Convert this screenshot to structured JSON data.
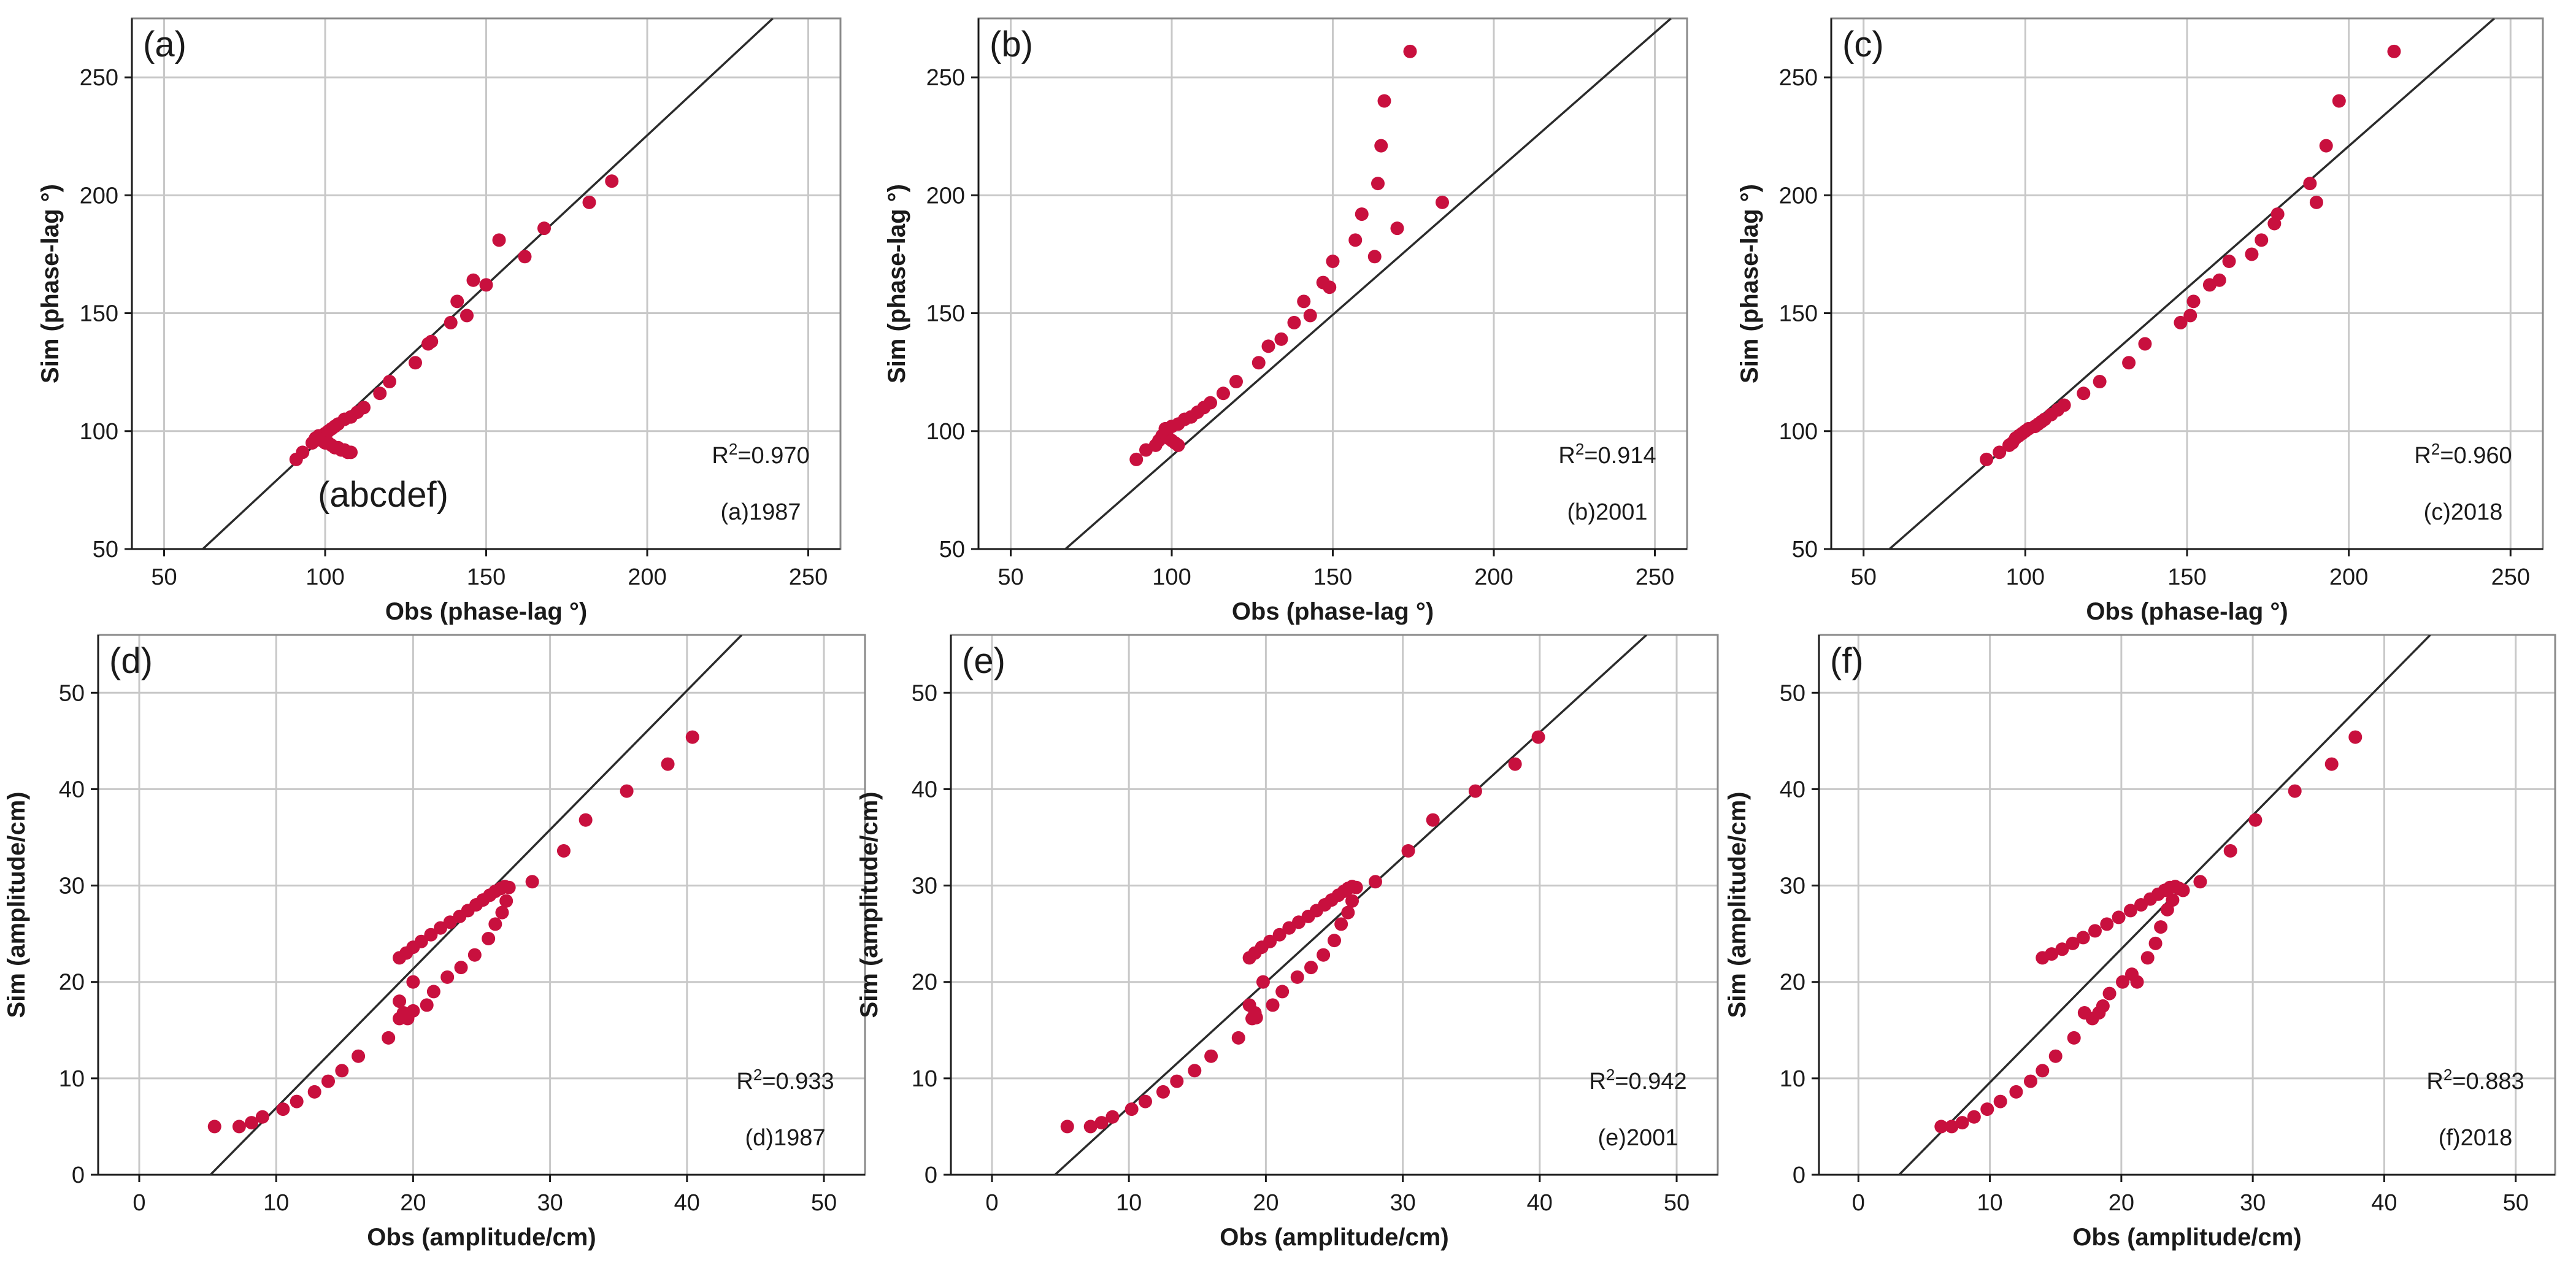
{
  "colors": {
    "point": "#c8103e",
    "grid": "#c8c8c8",
    "frame": "#8a8a8a",
    "line": "#2b2b2b",
    "text": "#1a1a1a"
  },
  "chart_data": [
    {
      "id": "a",
      "type": "scatter",
      "panel_label": "(a)",
      "xlabel": "Obs (phase-lag °)",
      "ylabel": "Sim (phase-lag °)",
      "xlim": [
        40,
        260
      ],
      "ylim": [
        50,
        275
      ],
      "xticks": [
        50,
        100,
        150,
        200,
        250
      ],
      "yticks": [
        50,
        100,
        150,
        200,
        250
      ],
      "reference_line": {
        "x1": 62,
        "y1": 50,
        "x2": 239,
        "y2": 275
      },
      "r2_prefix": "R",
      "r2_power": "2",
      "r2_value": "=0.970",
      "year_label": "(a)1987",
      "extra_label": "(abcdef)",
      "points": [
        [
          91,
          88
        ],
        [
          93,
          91
        ],
        [
          96,
          95
        ],
        [
          97,
          97
        ],
        [
          98,
          98
        ],
        [
          99,
          98
        ],
        [
          100,
          99
        ],
        [
          101,
          100
        ],
        [
          102,
          101
        ],
        [
          103,
          102
        ],
        [
          98,
          97
        ],
        [
          99,
          96
        ],
        [
          100,
          95
        ],
        [
          101,
          95
        ],
        [
          102,
          94
        ],
        [
          103,
          93
        ],
        [
          104,
          93
        ],
        [
          105,
          92
        ],
        [
          106,
          92
        ],
        [
          107,
          91
        ],
        [
          108,
          91
        ],
        [
          104,
          103
        ],
        [
          106,
          105
        ],
        [
          108,
          106
        ],
        [
          110,
          108
        ],
        [
          112,
          110
        ],
        [
          117,
          116
        ],
        [
          120,
          121
        ],
        [
          128,
          129
        ],
        [
          132,
          137
        ],
        [
          133,
          138
        ],
        [
          139,
          146
        ],
        [
          141,
          155
        ],
        [
          144,
          149
        ],
        [
          146,
          164
        ],
        [
          150,
          162
        ],
        [
          154,
          181
        ],
        [
          162,
          174
        ],
        [
          168,
          186
        ],
        [
          182,
          197
        ],
        [
          189,
          206
        ]
      ]
    },
    {
      "id": "b",
      "type": "scatter",
      "panel_label": "(b)",
      "xlabel": "Obs (phase-lag °)",
      "ylabel": "Sim (phase-lag °)",
      "xlim": [
        40,
        260
      ],
      "ylim": [
        50,
        275
      ],
      "xticks": [
        50,
        100,
        150,
        200,
        250
      ],
      "yticks": [
        50,
        100,
        150,
        200,
        250
      ],
      "reference_line": {
        "x1": 67,
        "y1": 50,
        "x2": 255,
        "y2": 275
      },
      "r2_prefix": "R",
      "r2_power": "2",
      "r2_value": "=0.914",
      "year_label": "(b)2001",
      "points": [
        [
          89,
          88
        ],
        [
          92,
          92
        ],
        [
          95,
          94
        ],
        [
          96,
          96
        ],
        [
          97,
          98
        ],
        [
          98,
          99
        ],
        [
          99,
          97
        ],
        [
          100,
          96
        ],
        [
          101,
          95
        ],
        [
          102,
          94
        ],
        [
          98,
          101
        ],
        [
          100,
          102
        ],
        [
          102,
          103
        ],
        [
          104,
          105
        ],
        [
          106,
          106
        ],
        [
          108,
          108
        ],
        [
          110,
          110
        ],
        [
          112,
          112
        ],
        [
          116,
          116
        ],
        [
          120,
          121
        ],
        [
          127,
          129
        ],
        [
          130,
          136
        ],
        [
          134,
          139
        ],
        [
          138,
          146
        ],
        [
          141,
          155
        ],
        [
          143,
          149
        ],
        [
          147,
          163
        ],
        [
          149,
          161
        ],
        [
          150,
          172
        ],
        [
          157,
          181
        ],
        [
          159,
          192
        ],
        [
          163,
          174
        ],
        [
          164,
          205
        ],
        [
          165,
          221
        ],
        [
          166,
          240
        ],
        [
          170,
          186
        ],
        [
          174,
          261
        ],
        [
          184,
          197
        ]
      ]
    },
    {
      "id": "c",
      "type": "scatter",
      "panel_label": "(c)",
      "xlabel": "Obs (phase-lag °)",
      "ylabel": "Sim (phase-lag °)",
      "xlim": [
        40,
        260
      ],
      "ylim": [
        50,
        275
      ],
      "xticks": [
        50,
        100,
        150,
        200,
        250
      ],
      "yticks": [
        50,
        100,
        150,
        200,
        250
      ],
      "reference_line": {
        "x1": 58,
        "y1": 50,
        "x2": 245,
        "y2": 275
      },
      "r2_prefix": "R",
      "r2_power": "2",
      "r2_value": "=0.960",
      "year_label": "(c)2018",
      "points": [
        [
          88,
          88
        ],
        [
          92,
          91
        ],
        [
          95,
          94
        ],
        [
          96,
          95
        ],
        [
          97,
          97
        ],
        [
          98,
          98
        ],
        [
          99,
          99
        ],
        [
          100,
          100
        ],
        [
          101,
          101
        ],
        [
          103,
          102
        ],
        [
          104,
          103
        ],
        [
          105,
          104
        ],
        [
          106,
          105
        ],
        [
          108,
          107
        ],
        [
          110,
          109
        ],
        [
          112,
          111
        ],
        [
          118,
          116
        ],
        [
          123,
          121
        ],
        [
          132,
          129
        ],
        [
          137,
          137
        ],
        [
          148,
          146
        ],
        [
          151,
          149
        ],
        [
          152,
          155
        ],
        [
          157,
          162
        ],
        [
          160,
          164
        ],
        [
          163,
          172
        ],
        [
          170,
          175
        ],
        [
          173,
          181
        ],
        [
          177,
          188
        ],
        [
          178,
          192
        ],
        [
          188,
          205
        ],
        [
          190,
          197
        ],
        [
          193,
          221
        ],
        [
          197,
          240
        ],
        [
          214,
          261
        ]
      ]
    },
    {
      "id": "d",
      "type": "scatter",
      "panel_label": "(d)",
      "xlabel": "Obs (amplitude/cm)",
      "ylabel": "Sim (amplitude/cm)",
      "xlim": [
        -3,
        53
      ],
      "ylim": [
        0,
        56
      ],
      "xticks": [
        0,
        10,
        20,
        30,
        40,
        50
      ],
      "yticks": [
        0,
        10,
        20,
        30,
        40,
        50
      ],
      "reference_line": {
        "x1": 5.2,
        "y1": 0,
        "x2": 44,
        "y2": 56
      },
      "r2_prefix": "R",
      "r2_power": "2",
      "r2_value": "=0.933",
      "year_label": "(d)1987",
      "points": [
        [
          5.5,
          5.0
        ],
        [
          7.3,
          5.0
        ],
        [
          8.2,
          5.4
        ],
        [
          9.0,
          6.0
        ],
        [
          10.5,
          6.8
        ],
        [
          11.5,
          7.6
        ],
        [
          12.8,
          8.6
        ],
        [
          13.8,
          9.7
        ],
        [
          14.8,
          10.8
        ],
        [
          16.0,
          12.3
        ],
        [
          18.2,
          14.2
        ],
        [
          19.0,
          16.2
        ],
        [
          19.3,
          16.8
        ],
        [
          19.6,
          16.2
        ],
        [
          20.0,
          17.0
        ],
        [
          19.0,
          18.0
        ],
        [
          20.0,
          20.0
        ],
        [
          21.0,
          17.6
        ],
        [
          21.5,
          19.0
        ],
        [
          22.5,
          20.5
        ],
        [
          23.5,
          21.5
        ],
        [
          24.5,
          22.8
        ],
        [
          25.5,
          24.5
        ],
        [
          26.0,
          26.0
        ],
        [
          26.5,
          27.2
        ],
        [
          26.8,
          28.4
        ],
        [
          19.0,
          22.5
        ],
        [
          19.5,
          23.0
        ],
        [
          20.0,
          23.6
        ],
        [
          20.6,
          24.2
        ],
        [
          21.3,
          24.9
        ],
        [
          22.0,
          25.6
        ],
        [
          22.7,
          26.2
        ],
        [
          23.4,
          26.8
        ],
        [
          24.0,
          27.4
        ],
        [
          24.6,
          28.0
        ],
        [
          25.1,
          28.5
        ],
        [
          25.6,
          29.0
        ],
        [
          26.0,
          29.4
        ],
        [
          26.4,
          29.7
        ],
        [
          26.7,
          29.9
        ],
        [
          27.0,
          29.8
        ],
        [
          28.7,
          30.4
        ],
        [
          31.0,
          33.6
        ],
        [
          32.6,
          36.8
        ],
        [
          35.6,
          39.8
        ],
        [
          38.6,
          42.6
        ],
        [
          40.4,
          45.4
        ]
      ]
    },
    {
      "id": "e",
      "type": "scatter",
      "panel_label": "(e)",
      "xlabel": "Obs (amplitude/cm)",
      "ylabel": "Sim (amplitude/cm)",
      "xlim": [
        -3,
        53
      ],
      "ylim": [
        0,
        56
      ],
      "xticks": [
        0,
        10,
        20,
        30,
        40,
        50
      ],
      "yticks": [
        0,
        10,
        20,
        30,
        40,
        50
      ],
      "reference_line": {
        "x1": 4.6,
        "y1": 0,
        "x2": 47.8,
        "y2": 56
      },
      "r2_prefix": "R",
      "r2_power": "2",
      "r2_value": "=0.942",
      "year_label": "(e)2001",
      "points": [
        [
          5.5,
          5.0
        ],
        [
          7.2,
          5.0
        ],
        [
          8.0,
          5.4
        ],
        [
          8.8,
          6.0
        ],
        [
          10.2,
          6.8
        ],
        [
          11.2,
          7.6
        ],
        [
          12.5,
          8.6
        ],
        [
          13.5,
          9.7
        ],
        [
          14.8,
          10.8
        ],
        [
          16.0,
          12.3
        ],
        [
          18.0,
          14.2
        ],
        [
          19.0,
          16.2
        ],
        [
          19.2,
          16.8
        ],
        [
          18.8,
          17.6
        ],
        [
          19.3,
          16.3
        ],
        [
          19.8,
          20.0
        ],
        [
          20.5,
          17.6
        ],
        [
          21.2,
          19.0
        ],
        [
          22.3,
          20.5
        ],
        [
          23.3,
          21.5
        ],
        [
          24.2,
          22.8
        ],
        [
          25.0,
          24.3
        ],
        [
          25.5,
          26.0
        ],
        [
          26.0,
          27.2
        ],
        [
          26.3,
          28.4
        ],
        [
          18.8,
          22.5
        ],
        [
          19.2,
          23.0
        ],
        [
          19.7,
          23.6
        ],
        [
          20.3,
          24.2
        ],
        [
          21.0,
          24.9
        ],
        [
          21.7,
          25.6
        ],
        [
          22.4,
          26.2
        ],
        [
          23.1,
          26.8
        ],
        [
          23.7,
          27.4
        ],
        [
          24.3,
          28.0
        ],
        [
          24.8,
          28.5
        ],
        [
          25.3,
          29.0
        ],
        [
          25.7,
          29.4
        ],
        [
          26.0,
          29.7
        ],
        [
          26.3,
          29.9
        ],
        [
          26.6,
          29.8
        ],
        [
          28.0,
          30.4
        ],
        [
          30.4,
          33.6
        ],
        [
          32.2,
          36.8
        ],
        [
          35.3,
          39.8
        ],
        [
          38.2,
          42.6
        ],
        [
          39.9,
          45.4
        ]
      ]
    },
    {
      "id": "f",
      "type": "scatter",
      "panel_label": "(f)",
      "xlabel": "Obs (amplitude/cm)",
      "ylabel": "Sim (amplitude/cm)",
      "xlim": [
        -3,
        53
      ],
      "ylim": [
        0,
        56
      ],
      "xticks": [
        0,
        10,
        20,
        30,
        40,
        50
      ],
      "yticks": [
        0,
        10,
        20,
        30,
        40,
        50
      ],
      "reference_line": {
        "x1": 3.1,
        "y1": 0,
        "x2": 43.5,
        "y2": 56
      },
      "r2_prefix": "R",
      "r2_power": "2",
      "r2_value": "=0.883",
      "year_label": "(f)2018",
      "points": [
        [
          6.3,
          5.0
        ],
        [
          7.1,
          5.0
        ],
        [
          7.9,
          5.4
        ],
        [
          8.8,
          6.0
        ],
        [
          9.8,
          6.8
        ],
        [
          10.8,
          7.6
        ],
        [
          12.0,
          8.6
        ],
        [
          13.1,
          9.7
        ],
        [
          14.0,
          10.8
        ],
        [
          15.0,
          12.3
        ],
        [
          16.4,
          14.2
        ],
        [
          17.2,
          16.8
        ],
        [
          17.8,
          16.2
        ],
        [
          18.3,
          16.8
        ],
        [
          18.6,
          17.5
        ],
        [
          19.1,
          18.8
        ],
        [
          20.1,
          20.0
        ],
        [
          21.2,
          20.0
        ],
        [
          20.8,
          20.8
        ],
        [
          22.0,
          22.5
        ],
        [
          22.6,
          24.0
        ],
        [
          23.0,
          25.7
        ],
        [
          23.5,
          27.5
        ],
        [
          23.9,
          28.5
        ],
        [
          14.0,
          22.5
        ],
        [
          14.7,
          22.9
        ],
        [
          15.5,
          23.4
        ],
        [
          16.3,
          24.0
        ],
        [
          17.1,
          24.6
        ],
        [
          18.0,
          25.3
        ],
        [
          18.9,
          26.0
        ],
        [
          19.8,
          26.7
        ],
        [
          20.7,
          27.4
        ],
        [
          21.5,
          28.0
        ],
        [
          22.2,
          28.6
        ],
        [
          22.8,
          29.1
        ],
        [
          23.3,
          29.5
        ],
        [
          23.7,
          29.8
        ],
        [
          24.1,
          29.9
        ],
        [
          24.4,
          29.7
        ],
        [
          24.7,
          29.5
        ],
        [
          26.0,
          30.4
        ],
        [
          28.3,
          33.6
        ],
        [
          30.2,
          36.8
        ],
        [
          33.2,
          39.8
        ],
        [
          36.0,
          42.6
        ],
        [
          37.8,
          45.4
        ]
      ]
    }
  ]
}
